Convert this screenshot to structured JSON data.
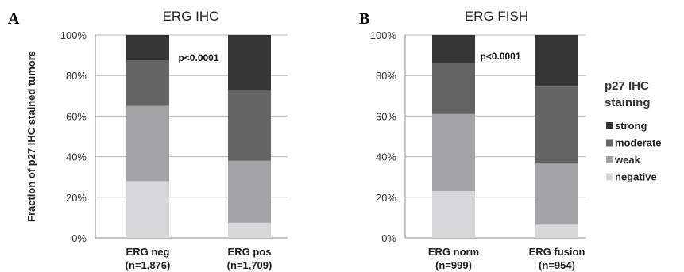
{
  "y_axis_label": "Fraction of p27 IHC stained tumors",
  "y_ticks": [
    "0%",
    "20%",
    "40%",
    "60%",
    "80%",
    "100%"
  ],
  "colors": {
    "negative": "#d5d7d8",
    "weak": "#a2a3a5",
    "moderate": "#646465",
    "strong": "#363636"
  },
  "legend": {
    "title_line1": "p27 IHC",
    "title_line2": "staining",
    "items": [
      {
        "key": "strong",
        "label": "strong"
      },
      {
        "key": "moderate",
        "label": "moderate"
      },
      {
        "key": "weak",
        "label": "weak"
      },
      {
        "key": "negative",
        "label": "negative"
      }
    ]
  },
  "chart_data": [
    {
      "type": "bar",
      "stacked": true,
      "panel_label": "A",
      "title": "ERG IHC",
      "annotation": "p<0.0001",
      "ylabel": "Fraction of p27 IHC stained tumors",
      "ylim": [
        0,
        100
      ],
      "categories": [
        {
          "line1": "ERG neg",
          "line2": "(n=1,876)"
        },
        {
          "line1": "ERG pos",
          "line2": "(n=1,709)"
        }
      ],
      "series": [
        {
          "name": "negative",
          "values": [
            28,
            7.5
          ]
        },
        {
          "name": "weak",
          "values": [
            37,
            30.5
          ]
        },
        {
          "name": "moderate",
          "values": [
            22.5,
            34.5
          ]
        },
        {
          "name": "strong",
          "values": [
            12.5,
            27.5
          ]
        }
      ]
    },
    {
      "type": "bar",
      "stacked": true,
      "panel_label": "B",
      "title": "ERG FISH",
      "annotation": "p<0.0001",
      "ylim": [
        0,
        100
      ],
      "categories": [
        {
          "line1": "ERG norm",
          "line2": "(n=999)"
        },
        {
          "line1": "ERG fusion",
          "line2": "(n=954)"
        }
      ],
      "series": [
        {
          "name": "negative",
          "values": [
            23,
            6.5
          ]
        },
        {
          "name": "weak",
          "values": [
            38,
            30.5
          ]
        },
        {
          "name": "moderate",
          "values": [
            25,
            37.5
          ]
        },
        {
          "name": "strong",
          "values": [
            14,
            25.5
          ]
        }
      ]
    }
  ]
}
